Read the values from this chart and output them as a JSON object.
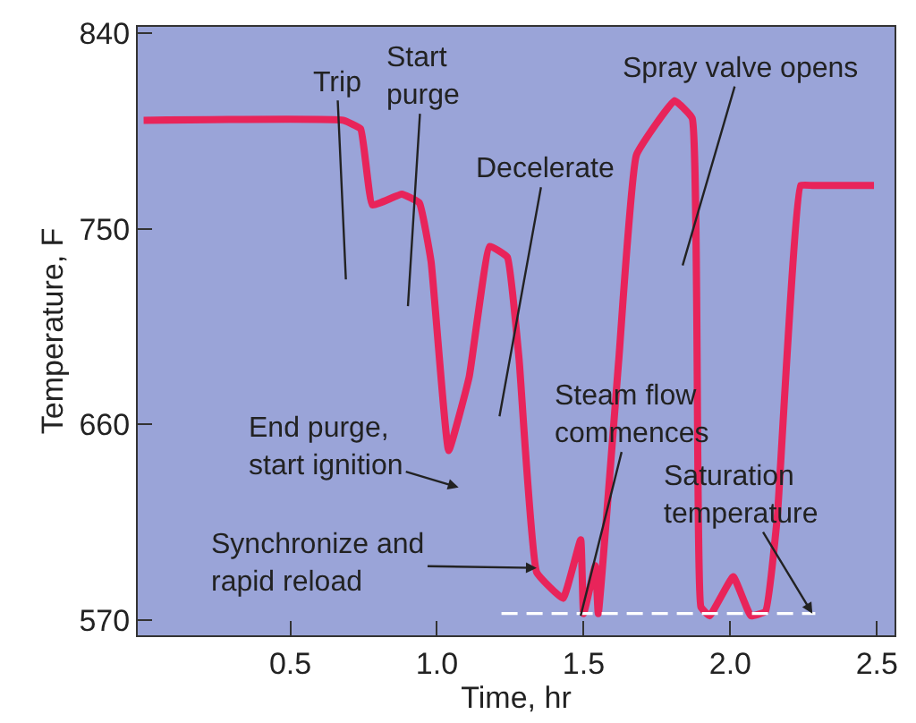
{
  "chart_data": {
    "type": "line",
    "xlabel": "Time, hr",
    "ylabel": "Temperature, F",
    "xlim": [
      -0.02,
      2.56
    ],
    "xticks": [
      {
        "value": 0.5,
        "label": "0.5"
      },
      {
        "value": 1.0,
        "label": "1.0"
      },
      {
        "value": 1.5,
        "label": "1.5"
      },
      {
        "value": 2.0,
        "label": "2.0"
      },
      {
        "value": 2.5,
        "label": "2.5"
      }
    ],
    "ylim": [
      563,
      843
    ],
    "yticks": [
      570,
      660,
      750,
      840
    ],
    "grid": false,
    "marker": "none",
    "series": [
      {
        "color": "#e8245a",
        "line_style": "solid",
        "x": [
          0,
          0.68,
          0.74,
          0.78,
          0.88,
          0.94,
          0.98,
          1.04,
          1.11,
          1.18,
          1.24,
          1.28,
          1.34,
          1.43,
          1.49,
          1.5,
          1.54,
          1.55,
          1.62,
          1.68,
          1.81,
          1.87,
          1.9,
          1.93,
          2.01,
          2.07,
          2.12,
          2.16,
          2.24,
          2.28,
          2.49
        ],
        "values": [
          800,
          800,
          796,
          761,
          766,
          762,
          735,
          648,
          682,
          742,
          737,
          690,
          592,
          580,
          607,
          573,
          595,
          573,
          690,
          784,
          809,
          801,
          576,
          572,
          590,
          572,
          574,
          617,
          770,
          770,
          770
        ]
      },
      {
        "color": "#ffffff",
        "line_style": "dashed",
        "x": [
          1.22,
          2.29
        ],
        "values": [
          573,
          573
        ]
      }
    ],
    "annotations": [
      "Trip",
      "Start\npurge",
      "Decelerate",
      "End purge,\nstart ignition",
      {
        "text": "Synchronize and\nrapid reload",
        "x": 1.34,
        "y": 594
      },
      {
        "text": "Steam flow\ncommences",
        "x": 1.49,
        "y": 572
      },
      "Spray valve opens",
      {
        "text": "Saturation\ntemperature",
        "x": 2.28,
        "y": 573
      }
    ]
  }
}
